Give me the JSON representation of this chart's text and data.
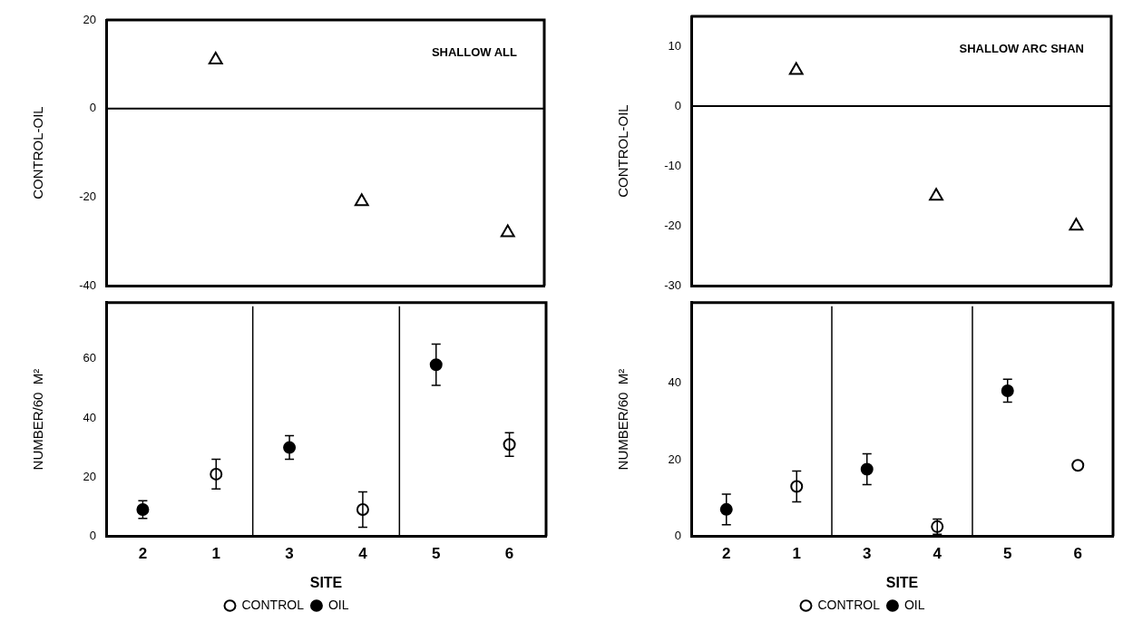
{
  "chart_data": [
    {
      "type": "scatter",
      "ylabel": "CONTROL-OIL",
      "categories": [
        "2",
        "1",
        "3",
        "4",
        "5",
        "6"
      ],
      "ylim": [
        -40,
        20
      ],
      "yticks": [
        20,
        0,
        -20,
        -40
      ],
      "tick_labels": "y",
      "grid": false,
      "legend": false,
      "marker": "triangle",
      "annotations": [
        "SHALLOW ALL"
      ],
      "ref_lines": [
        {
          "axis": "y",
          "value": 0
        }
      ],
      "series": [
        {
          "color": "#ffffff",
          "values": [
            null,
            11,
            null,
            -21,
            null,
            -28
          ]
        }
      ]
    },
    {
      "type": "scatter",
      "ylabel": "NUMBER/60  M²",
      "xlabel": "SITE",
      "categories": [
        "2",
        "1",
        "3",
        "4",
        "5",
        "6"
      ],
      "ylim": [
        0,
        79
      ],
      "yticks": [
        0,
        20,
        40,
        60
      ],
      "grid": false,
      "legend": "bottom",
      "marker": "circle",
      "series": [
        {
          "name": "CONTROL",
          "color": "#ffffff",
          "values": [
            null,
            21,
            null,
            9,
            null,
            31
          ],
          "errors": [
            null,
            5,
            null,
            6,
            null,
            4
          ]
        },
        {
          "name": "OIL",
          "color": "#000000",
          "values": [
            9,
            null,
            30,
            null,
            58,
            null
          ],
          "errors": [
            3,
            null,
            4,
            null,
            7,
            null
          ]
        }
      ]
    },
    {
      "type": "scatter",
      "ylabel": "CONTROL-OIL",
      "categories": [
        "2",
        "1",
        "3",
        "4",
        "5",
        "6"
      ],
      "ylim": [
        -30,
        15
      ],
      "yticks": [
        10,
        0,
        -10,
        -20,
        -30
      ],
      "tick_labels": "y",
      "grid": false,
      "legend": false,
      "marker": "triangle",
      "annotations": [
        "SHALLOW ARC SHAN"
      ],
      "ref_lines": [
        {
          "axis": "y",
          "value": 0
        }
      ],
      "series": [
        {
          "color": "#ffffff",
          "values": [
            null,
            6,
            null,
            -15,
            null,
            -20
          ]
        }
      ]
    },
    {
      "type": "scatter",
      "ylabel": "NUMBER/60  M²",
      "xlabel": "SITE",
      "categories": [
        "2",
        "1",
        "3",
        "4",
        "5",
        "6"
      ],
      "ylim": [
        0,
        61
      ],
      "yticks": [
        0,
        20,
        40
      ],
      "grid": false,
      "legend": "bottom",
      "marker": "circle",
      "series": [
        {
          "name": "CONTROL",
          "color": "#ffffff",
          "values": [
            null,
            13,
            null,
            2.5,
            null,
            18.5
          ],
          "errors": [
            null,
            4,
            null,
            2,
            null,
            null
          ]
        },
        {
          "name": "OIL",
          "color": "#000000",
          "values": [
            7,
            null,
            17.5,
            null,
            38,
            null
          ],
          "errors": [
            4,
            null,
            4,
            null,
            3,
            null
          ]
        }
      ]
    }
  ]
}
